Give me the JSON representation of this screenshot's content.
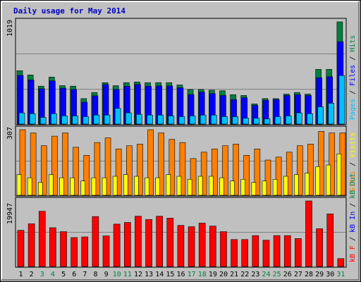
{
  "title": "Daily usage for May 2014",
  "colors": {
    "background": "#c0c0c0",
    "hits": "#008040",
    "files": "#0000ff",
    "pages": "#00c0ff",
    "visits": "#ffff00",
    "sites": "#ff8000",
    "kb_f": "#ff0000",
    "kb_in": "#0000ff",
    "kb_out": "#008040",
    "weekend": "#008040",
    "weekday": "#000000"
  },
  "chart_data": [
    {
      "type": "bar",
      "panel": "hits-files-pages",
      "ymax_label": "1019",
      "ylim": [
        0,
        1019
      ],
      "legend": [
        "Pages",
        "Files",
        "Hits"
      ],
      "categories": [
        "1",
        "2",
        "3",
        "4",
        "5",
        "6",
        "7",
        "8",
        "9",
        "10",
        "11",
        "12",
        "13",
        "14",
        "15",
        "16",
        "17",
        "18",
        "19",
        "20",
        "21",
        "22",
        "23",
        "24",
        "25",
        "26",
        "27",
        "28",
        "29",
        "30",
        "31"
      ],
      "series": [
        {
          "name": "Hits",
          "values": [
            532,
            490,
            378,
            468,
            383,
            378,
            254,
            315,
            413,
            383,
            413,
            420,
            413,
            413,
            413,
            390,
            345,
            345,
            338,
            332,
            293,
            285,
            201,
            254,
            254,
            299,
            315,
            299,
            545,
            545,
            1019
          ]
        },
        {
          "name": "Files",
          "values": [
            485,
            440,
            352,
            430,
            358,
            345,
            218,
            282,
            394,
            345,
            378,
            395,
            378,
            380,
            380,
            362,
            294,
            320,
            304,
            285,
            244,
            263,
            187,
            238,
            244,
            285,
            292,
            285,
            462,
            472,
            821
          ]
        },
        {
          "name": "Pages",
          "values": [
            112,
            104,
            67,
            104,
            82,
            82,
            74,
            90,
            90,
            157,
            112,
            97,
            90,
            90,
            82,
            75,
            82,
            90,
            90,
            75,
            74,
            59,
            59,
            52,
            74,
            82,
            112,
            104,
            172,
            208,
            484
          ]
        }
      ]
    },
    {
      "type": "bar",
      "panel": "visits-sites",
      "ymax_label": "307",
      "ylim": [
        0,
        307
      ],
      "legend": [
        "Visits",
        "Sites"
      ],
      "categories": [
        "1",
        "2",
        "3",
        "4",
        "5",
        "6",
        "7",
        "8",
        "9",
        "10",
        "11",
        "12",
        "13",
        "14",
        "15",
        "16",
        "17",
        "18",
        "19",
        "20",
        "21",
        "22",
        "23",
        "24",
        "25",
        "26",
        "27",
        "28",
        "29",
        "30",
        "31"
      ],
      "series": [
        {
          "name": "Visits",
          "values": [
            97,
            82,
            60,
            97,
            82,
            82,
            67,
            82,
            82,
            89,
            97,
            89,
            82,
            82,
            97,
            89,
            75,
            89,
            89,
            82,
            67,
            75,
            60,
            67,
            75,
            89,
            97,
            104,
            134,
            142,
            194
          ]
        },
        {
          "name": "Sites",
          "values": [
            307,
            292,
            232,
            277,
            292,
            225,
            187,
            247,
            269,
            217,
            232,
            240,
            307,
            292,
            262,
            247,
            172,
            202,
            217,
            232,
            240,
            187,
            217,
            165,
            179,
            202,
            232,
            240,
            299,
            292,
            292
          ]
        }
      ]
    },
    {
      "type": "bar",
      "panel": "kbytes",
      "ymax_label": "19947",
      "ylim": [
        0,
        19947
      ],
      "legend": [
        "kB F",
        "kB In",
        "kB Out"
      ],
      "categories": [
        "1",
        "2",
        "3",
        "4",
        "5",
        "6",
        "7",
        "8",
        "9",
        "10",
        "11",
        "12",
        "13",
        "14",
        "15",
        "16",
        "17",
        "18",
        "19",
        "20",
        "21",
        "22",
        "23",
        "24",
        "25",
        "26",
        "27",
        "28",
        "29",
        "30",
        "31"
      ],
      "series": [
        {
          "name": "kB F",
          "values": [
            11000,
            13000,
            16800,
            11800,
            10600,
            8800,
            9000,
            15200,
            9300,
            12900,
            13400,
            15300,
            14300,
            15300,
            14700,
            12500,
            12100,
            13200,
            12300,
            10600,
            8200,
            8200,
            9400,
            8000,
            9400,
            9400,
            8500,
            19947,
            11500,
            16000,
            2400
          ]
        }
      ]
    }
  ],
  "day_labels": [
    "1",
    "2",
    "3",
    "4",
    "5",
    "6",
    "7",
    "8",
    "9",
    "10",
    "11",
    "12",
    "13",
    "14",
    "15",
    "16",
    "17",
    "18",
    "19",
    "20",
    "21",
    "22",
    "23",
    "24",
    "25",
    "26",
    "27",
    "28",
    "29",
    "30",
    "31"
  ],
  "weekend_days": [
    "3",
    "4",
    "10",
    "11",
    "17",
    "18",
    "24",
    "25",
    "31"
  ]
}
